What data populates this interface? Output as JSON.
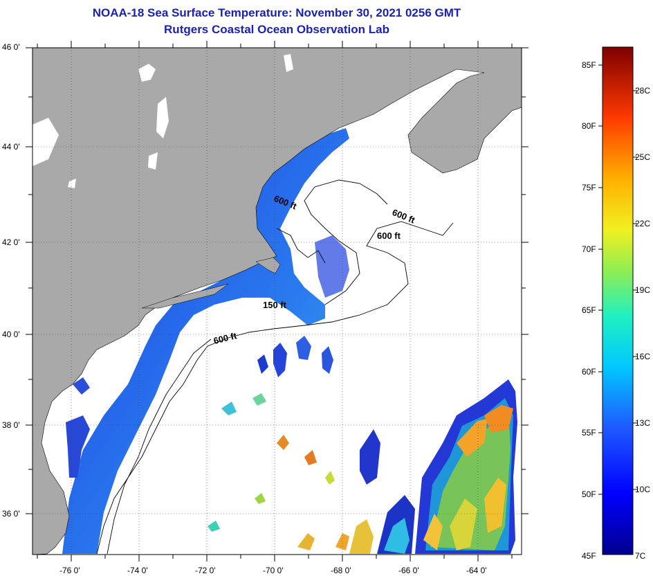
{
  "header": {
    "title": "NOAA-18 Sea Surface Temperature:  November 30, 2021 0256 GMT",
    "subtitle": "Rutgers Coastal Ocean Observation Lab"
  },
  "map": {
    "lat_labels": [
      "46 0'",
      "44 0'",
      "42 0'",
      "40 0'",
      "38 0'",
      "36 0'"
    ],
    "lon_labels": [
      "-76 0'",
      "-74 0'",
      "-72 0'",
      "-70 0'",
      "-68 0'",
      "-66 0'",
      "-64 0'"
    ],
    "isobaths": [
      "600 ft",
      "600 ft",
      "600 ft",
      "150 ft",
      "600 ft"
    ]
  },
  "colorbar": {
    "fahrenheit": [
      "85F",
      "80F",
      "75F",
      "70F",
      "65F",
      "60F",
      "55F",
      "50F",
      "45F"
    ],
    "celsius": [
      "28C",
      "25C",
      "22C",
      "19C",
      "16C",
      "13C",
      "10C",
      "7C"
    ]
  },
  "colors": {
    "land": "#a9a9a9",
    "title": "#1a22b4"
  }
}
